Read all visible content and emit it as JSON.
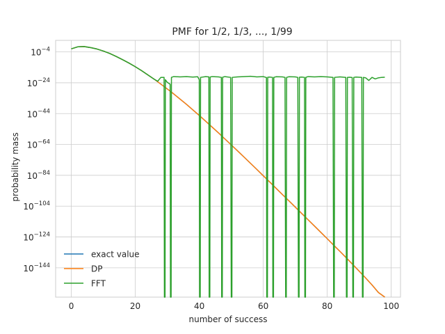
{
  "chart_data": {
    "type": "line",
    "title": "PMF for 1/2, 1/3, ..., 1/99",
    "xlabel": "number of success",
    "ylabel": "probability mass",
    "x_ticks": [
      0,
      20,
      40,
      60,
      80,
      100
    ],
    "y_ticks": [
      {
        "base": "10",
        "exp": "−4",
        "log10": -4
      },
      {
        "base": "10",
        "exp": "−24",
        "log10": -24
      },
      {
        "base": "10",
        "exp": "−44",
        "log10": -44
      },
      {
        "base": "10",
        "exp": "−64",
        "log10": -64
      },
      {
        "base": "10",
        "exp": "−84",
        "log10": -84
      },
      {
        "base": "10",
        "exp": "−104",
        "log10": -104
      },
      {
        "base": "10",
        "exp": "−124",
        "log10": -124
      },
      {
        "base": "10",
        "exp": "−144",
        "log10": -144
      }
    ],
    "xlim": [
      -4.9,
      102.9
    ],
    "ylim_log10": [
      -163,
      3.5
    ],
    "y_scale": "log",
    "grid": true,
    "legend_position": "lower-left",
    "series": [
      {
        "name": "exact value",
        "color": "#1f77b4",
        "points": [
          [
            0,
            -2.0
          ],
          [
            2,
            -0.7
          ],
          [
            4,
            -0.5
          ],
          [
            6,
            -1.2
          ],
          [
            8,
            -2.1
          ],
          [
            10,
            -3.4
          ],
          [
            12,
            -5.0
          ],
          [
            14,
            -6.9
          ],
          [
            16,
            -9.0
          ],
          [
            18,
            -11.2
          ],
          [
            20,
            -13.6
          ],
          [
            22,
            -16.2
          ],
          [
            24,
            -19.0
          ],
          [
            26,
            -21.8
          ],
          [
            28,
            -24.9
          ],
          [
            30,
            -28.0
          ],
          [
            32,
            -31.2
          ],
          [
            34,
            -34.6
          ],
          [
            36,
            -38.0
          ],
          [
            38,
            -41.6
          ],
          [
            40,
            -45.2
          ],
          [
            42,
            -48.9
          ],
          [
            44,
            -52.7
          ],
          [
            46,
            -56.5
          ],
          [
            48,
            -60.4
          ],
          [
            50,
            -64.3
          ],
          [
            52,
            -68.2
          ],
          [
            54,
            -72.2
          ],
          [
            56,
            -76.2
          ],
          [
            58,
            -80.2
          ],
          [
            60,
            -84.3
          ],
          [
            62,
            -88.3
          ],
          [
            64,
            -92.4
          ],
          [
            66,
            -96.5
          ],
          [
            68,
            -100.5
          ],
          [
            70,
            -104.6
          ],
          [
            72,
            -108.7
          ],
          [
            74,
            -112.8
          ],
          [
            76,
            -116.9
          ],
          [
            78,
            -121.0
          ],
          [
            80,
            -125.1
          ],
          [
            82,
            -129.3
          ],
          [
            84,
            -133.4
          ],
          [
            86,
            -137.6
          ],
          [
            88,
            -141.9
          ],
          [
            90,
            -146.2
          ],
          [
            92,
            -150.6
          ],
          [
            94,
            -155.1
          ],
          [
            96,
            -160.0
          ],
          [
            98,
            -165.0
          ]
        ]
      },
      {
        "name": "DP",
        "color": "#ff7f0e",
        "points": [
          [
            0,
            -2.0
          ],
          [
            2,
            -0.7
          ],
          [
            4,
            -0.5
          ],
          [
            6,
            -1.2
          ],
          [
            8,
            -2.1
          ],
          [
            10,
            -3.4
          ],
          [
            12,
            -5.0
          ],
          [
            14,
            -6.9
          ],
          [
            16,
            -9.0
          ],
          [
            18,
            -11.2
          ],
          [
            20,
            -13.6
          ],
          [
            22,
            -16.2
          ],
          [
            24,
            -19.0
          ],
          [
            26,
            -21.8
          ],
          [
            28,
            -24.9
          ],
          [
            30,
            -28.0
          ],
          [
            32,
            -31.2
          ],
          [
            34,
            -34.6
          ],
          [
            36,
            -38.0
          ],
          [
            38,
            -41.6
          ],
          [
            40,
            -45.2
          ],
          [
            42,
            -48.9
          ],
          [
            44,
            -52.7
          ],
          [
            46,
            -56.5
          ],
          [
            48,
            -60.4
          ],
          [
            50,
            -64.3
          ],
          [
            52,
            -68.2
          ],
          [
            54,
            -72.2
          ],
          [
            56,
            -76.2
          ],
          [
            58,
            -80.2
          ],
          [
            60,
            -84.3
          ],
          [
            62,
            -88.3
          ],
          [
            64,
            -92.4
          ],
          [
            66,
            -96.5
          ],
          [
            68,
            -100.5
          ],
          [
            70,
            -104.6
          ],
          [
            72,
            -108.7
          ],
          [
            74,
            -112.8
          ],
          [
            76,
            -116.9
          ],
          [
            78,
            -121.0
          ],
          [
            80,
            -125.1
          ],
          [
            82,
            -129.3
          ],
          [
            84,
            -133.4
          ],
          [
            86,
            -137.6
          ],
          [
            88,
            -141.9
          ],
          [
            90,
            -146.2
          ],
          [
            92,
            -150.6
          ],
          [
            94,
            -155.1
          ],
          [
            96,
            -160.0
          ],
          [
            98,
            -165.0
          ]
        ]
      },
      {
        "name": "FFT",
        "color": "#2ca02c",
        "points": [
          [
            0,
            -2.0
          ],
          [
            2,
            -0.7
          ],
          [
            4,
            -0.5
          ],
          [
            6,
            -1.2
          ],
          [
            8,
            -2.1
          ],
          [
            10,
            -3.4
          ],
          [
            12,
            -5.0
          ],
          [
            14,
            -6.9
          ],
          [
            16,
            -9.0
          ],
          [
            18,
            -11.2
          ],
          [
            20,
            -13.6
          ],
          [
            22,
            -16.2
          ],
          [
            24,
            -19.0
          ],
          [
            26,
            -21.8
          ],
          [
            27,
            -23.0
          ],
          [
            28,
            -20.5
          ],
          [
            29,
            -20.5
          ],
          [
            29.1,
            -175
          ],
          [
            29.3,
            -175
          ],
          [
            29.4,
            -22.0
          ],
          [
            30,
            -23.7
          ],
          [
            30.9,
            -25.0
          ],
          [
            31,
            -175
          ],
          [
            31.2,
            -175
          ],
          [
            31.3,
            -20.5
          ],
          [
            32,
            -20.0
          ],
          [
            34,
            -20.2
          ],
          [
            36,
            -20.0
          ],
          [
            38,
            -20.3
          ],
          [
            39.5,
            -20.1
          ],
          [
            40,
            -22.0
          ],
          [
            40.1,
            -175
          ],
          [
            40.3,
            -175
          ],
          [
            40.4,
            -20.5
          ],
          [
            42,
            -20.0
          ],
          [
            43,
            -20.2
          ],
          [
            43.1,
            -175
          ],
          [
            43.3,
            -175
          ],
          [
            43.4,
            -20.3
          ],
          [
            44,
            -20.0
          ],
          [
            46,
            -20.2
          ],
          [
            46.9,
            -20.5
          ],
          [
            47,
            -175
          ],
          [
            47.2,
            -175
          ],
          [
            47.3,
            -20.4
          ],
          [
            48,
            -20.0
          ],
          [
            49.8,
            -20.5
          ],
          [
            50,
            -175
          ],
          [
            50.2,
            -175
          ],
          [
            50.3,
            -20.5
          ],
          [
            52,
            -20.2
          ],
          [
            54,
            -20.0
          ],
          [
            56,
            -19.8
          ],
          [
            58,
            -20.2
          ],
          [
            60,
            -20.0
          ],
          [
            61,
            -20.6
          ],
          [
            61.1,
            -175
          ],
          [
            61.3,
            -175
          ],
          [
            61.4,
            -20.4
          ],
          [
            62,
            -20.3
          ],
          [
            62.9,
            -20.5
          ],
          [
            63,
            -175
          ],
          [
            63.2,
            -175
          ],
          [
            63.3,
            -20.5
          ],
          [
            64,
            -20.1
          ],
          [
            66,
            -20.2
          ],
          [
            66.8,
            -20.5
          ],
          [
            67,
            -175
          ],
          [
            67.2,
            -175
          ],
          [
            67.3,
            -20.5
          ],
          [
            68,
            -20.1
          ],
          [
            70,
            -20.2
          ],
          [
            70.8,
            -20.5
          ],
          [
            71,
            -175
          ],
          [
            71.2,
            -175
          ],
          [
            71.3,
            -20.4
          ],
          [
            72,
            -20.3
          ],
          [
            72.9,
            -20.5
          ],
          [
            73,
            -175
          ],
          [
            73.2,
            -175
          ],
          [
            73.3,
            -20.5
          ],
          [
            74,
            -20.0
          ],
          [
            76,
            -20.2
          ],
          [
            78,
            -20.0
          ],
          [
            80,
            -20.2
          ],
          [
            81.8,
            -20.5
          ],
          [
            82,
            -175
          ],
          [
            82.2,
            -175
          ],
          [
            82.3,
            -20.5
          ],
          [
            84,
            -20.2
          ],
          [
            85.8,
            -20.5
          ],
          [
            86,
            -175
          ],
          [
            86.2,
            -175
          ],
          [
            86.3,
            -20.5
          ],
          [
            87,
            -20.4
          ],
          [
            87.8,
            -20.6
          ],
          [
            88,
            -175
          ],
          [
            88.2,
            -175
          ],
          [
            88.3,
            -20.5
          ],
          [
            89,
            -20.3
          ],
          [
            90.8,
            -20.5
          ],
          [
            91,
            -175
          ],
          [
            91.2,
            -175
          ],
          [
            91.3,
            -20.5
          ],
          [
            92,
            -20.8
          ],
          [
            93,
            -22.5
          ],
          [
            94,
            -20.5
          ],
          [
            95,
            -21.5
          ],
          [
            96,
            -20.8
          ],
          [
            97,
            -20.5
          ],
          [
            98,
            -20.4
          ]
        ]
      }
    ]
  }
}
